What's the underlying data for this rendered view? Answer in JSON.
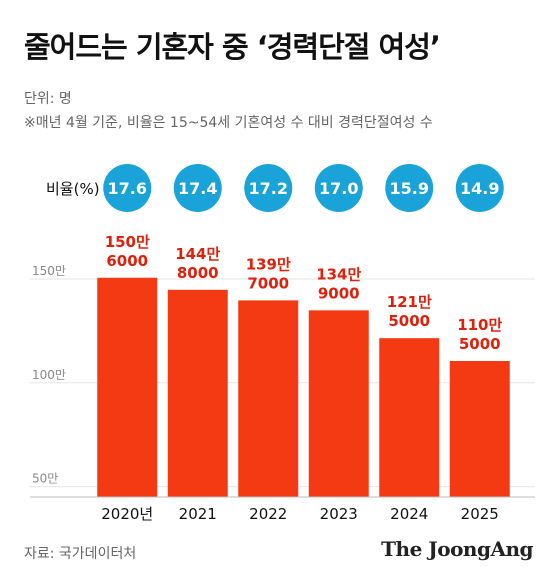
{
  "header": {
    "title": "줄어드는 기혼자 중 ‘경력단절 여성’",
    "unit": "단위: 명",
    "note": "※매년 4월 기준, 비율은 15~54세 기혼여성 수 대비 경력단절여성 수"
  },
  "footer": {
    "source": "자료: 국가데이터처",
    "brand": "The JoongAng"
  },
  "colors": {
    "bar": "#f43a12",
    "value_text": "#e0200a",
    "bubble": "#1aa3d8",
    "axis_text": "#888888",
    "grid": "#e6e6e6"
  },
  "chart_data": {
    "type": "bar",
    "categories": [
      "2020년",
      "2021",
      "2022",
      "2023",
      "2024",
      "2025"
    ],
    "values": [
      1506000,
      1448000,
      1397000,
      1349000,
      1215000,
      1105000
    ],
    "value_labels": [
      [
        "150만",
        "6000"
      ],
      [
        "144만",
        "8000"
      ],
      [
        "139만",
        "7000"
      ],
      [
        "134만",
        "9000"
      ],
      [
        "121만",
        "5000"
      ],
      [
        "110만",
        "5000"
      ]
    ],
    "ratio_label": "비율(%)",
    "ratios": [
      "17.6",
      "17.4",
      "17.2",
      "17.0",
      "15.9",
      "14.9"
    ],
    "y_ticks": [
      {
        "value": 1500000,
        "label": "150만"
      },
      {
        "value": 1000000,
        "label": "100만"
      },
      {
        "value": 500000,
        "label": "50만"
      }
    ],
    "ylim": [
      450000,
      1500000
    ],
    "ylabel": "",
    "xlabel": ""
  }
}
